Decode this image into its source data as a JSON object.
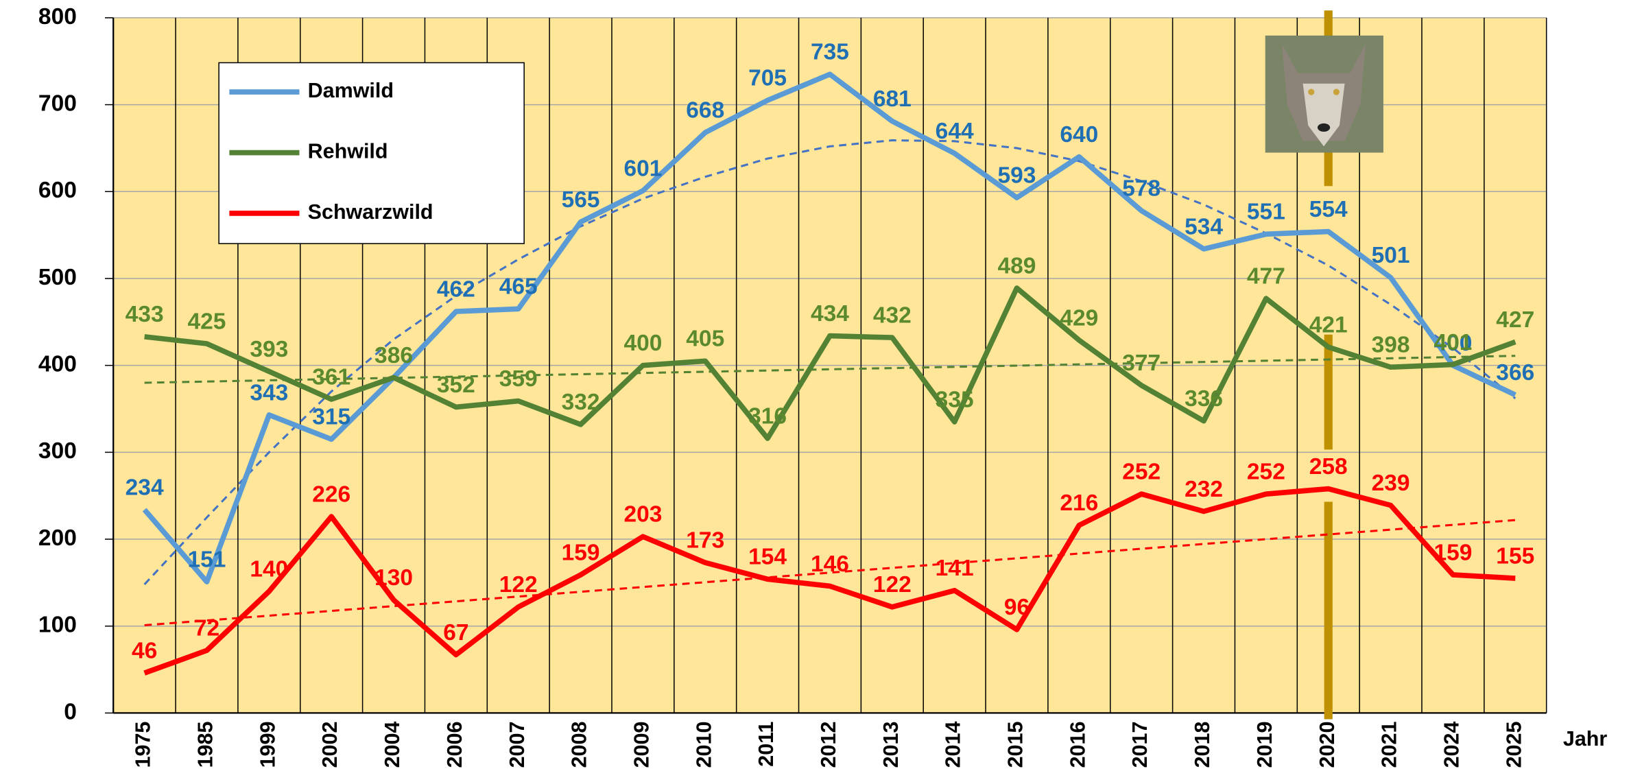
{
  "chart_data": {
    "type": "line",
    "x_label": "Jahr",
    "categories": [
      "1975",
      "1985",
      "1999",
      "2002",
      "2004",
      "2006",
      "2007",
      "2008",
      "2009",
      "2010",
      "2011",
      "2012",
      "2013",
      "2014",
      "2015",
      "2016",
      "2017",
      "2018",
      "2019",
      "2020",
      "2021",
      "2024",
      "2025"
    ],
    "series": [
      {
        "name": "Damwild",
        "color": "#5b9bd5",
        "label_color": "#1f6fb5",
        "values": [
          234,
          151,
          343,
          315,
          386,
          462,
          465,
          565,
          601,
          668,
          705,
          735,
          681,
          644,
          593,
          640,
          578,
          534,
          551,
          554,
          501,
          400,
          366
        ],
        "value_labels": [
          "234",
          "151",
          "343",
          "315",
          null,
          "462",
          "465",
          "565",
          "601",
          "668",
          "705",
          "735",
          "681",
          "644",
          "593",
          "640",
          "578",
          "534",
          "551",
          "554",
          "501",
          "400",
          "366"
        ],
        "trend": [
          148,
          225,
          300,
          370,
          430,
          480,
          522,
          560,
          592,
          617,
          638,
          652,
          659,
          658,
          650,
          635,
          612,
          585,
          552,
          515,
          470,
          420,
          362
        ]
      },
      {
        "name": "Rehwild",
        "color": "#548235",
        "label_color": "#5b8a2e",
        "values": [
          433,
          425,
          393,
          361,
          386,
          352,
          359,
          332,
          400,
          405,
          316,
          434,
          432,
          335,
          489,
          429,
          377,
          336,
          477,
          421,
          398,
          401,
          427
        ],
        "trend": [
          380,
          411
        ]
      },
      {
        "name": "Schwarzwild",
        "color": "#ff0000",
        "label_color": "#ff0000",
        "values": [
          46,
          72,
          140,
          226,
          130,
          67,
          122,
          159,
          203,
          173,
          154,
          146,
          122,
          141,
          96,
          216,
          252,
          232,
          252,
          258,
          239,
          159,
          155
        ],
        "trend": [
          101,
          222
        ]
      }
    ],
    "ylim": [
      0,
      800
    ],
    "yticks": [
      0,
      100,
      200,
      300,
      400,
      500,
      600,
      700,
      800
    ],
    "grid": true,
    "marker_category": "2020"
  }
}
